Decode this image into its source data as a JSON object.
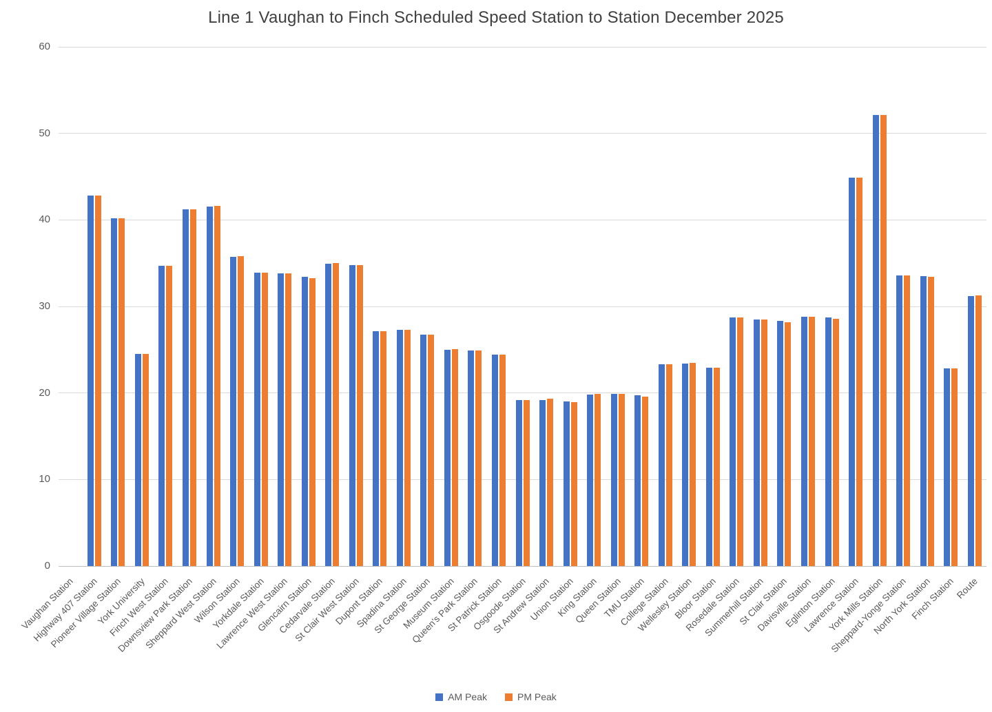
{
  "chart_data": {
    "type": "bar",
    "title": "Line 1 Vaughan to Finch Scheduled Speed Station to Station December 2025",
    "xlabel": "",
    "ylabel": "",
    "ylim": [
      0,
      60
    ],
    "yticks": [
      0,
      10,
      20,
      30,
      40,
      50,
      60
    ],
    "grid": true,
    "legend_position": "bottom",
    "categories": [
      "Vaughan Station",
      "Highway 407 Station",
      "Pioneer Village Station",
      "York University",
      "Finch West Station",
      "Downsview Park Station",
      "Sheppard West Station",
      "Wilson Station",
      "Yorkdale Station",
      "Lawrence West Station",
      "Glencairn Station",
      "Cedarvale Station",
      "St Clair West Station",
      "Dupont Station",
      "Spadina Station",
      "St George Station",
      "Museum Station",
      "Queen's Park Station",
      "St Patrick Station",
      "Osgoode Station",
      "St Andrew Station",
      "Union Station",
      "King Station",
      "Queen Station",
      "TMU Station",
      "College Station",
      "Wellesley Station",
      "Bloor Station",
      "Rosedale Station",
      "Summerhill Station",
      "St Clair Station",
      "Davisville Station",
      "Eglinton Station",
      "Lawrence Station",
      "York Mills Station",
      "Sheppard-Yonge Station",
      "North York Station",
      "Finch Station",
      "Route"
    ],
    "series": [
      {
        "name": "AM Peak",
        "color": "#4472C4",
        "values": [
          null,
          42.8,
          40.2,
          24.5,
          34.7,
          41.2,
          41.5,
          35.7,
          33.9,
          33.8,
          33.4,
          34.9,
          34.8,
          27.1,
          27.3,
          26.7,
          25.0,
          24.9,
          24.4,
          19.2,
          19.2,
          19.0,
          19.8,
          19.9,
          19.7,
          23.3,
          23.4,
          22.9,
          28.7,
          28.5,
          28.3,
          28.8,
          28.7,
          44.9,
          52.1,
          33.6,
          33.5,
          22.8,
          31.2
        ]
      },
      {
        "name": "PM Peak",
        "color": "#ED7D31",
        "values": [
          null,
          42.8,
          40.2,
          24.5,
          34.7,
          41.2,
          41.6,
          35.8,
          33.9,
          33.8,
          33.3,
          35.0,
          34.8,
          27.1,
          27.3,
          26.7,
          25.1,
          24.9,
          24.4,
          19.2,
          19.3,
          18.9,
          19.9,
          19.9,
          19.6,
          23.3,
          23.5,
          22.9,
          28.7,
          28.5,
          28.2,
          28.8,
          28.6,
          44.9,
          52.1,
          33.6,
          33.4,
          22.8,
          31.3
        ]
      }
    ]
  }
}
